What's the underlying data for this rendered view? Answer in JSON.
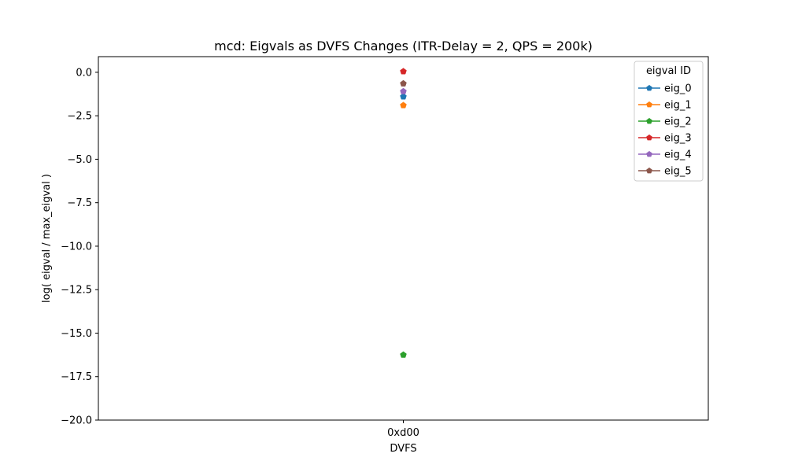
{
  "chart_data": {
    "type": "line",
    "title": "mcd: Eigvals as DVFS Changes (ITR-Delay = 2, QPS = 200k)",
    "xlabel": "DVFS",
    "ylabel": "log( eigval / max_eigval )",
    "categories": [
      "0xd00"
    ],
    "ylim": [
      -20,
      0.9
    ],
    "yticks": [
      0.0,
      -2.5,
      -5.0,
      -7.5,
      -10.0,
      -12.5,
      -15.0,
      -17.5,
      -20.0
    ],
    "ytick_labels": [
      "0.0",
      "−2.5",
      "−5.0",
      "−7.5",
      "−10.0",
      "−12.5",
      "−15.0",
      "−17.5",
      "−20.0"
    ],
    "grid": false,
    "legend": {
      "title": "eigval ID",
      "placement": "upper right"
    },
    "marker": "pentagon",
    "series": [
      {
        "name": "eig_0",
        "color": "#1f77b4",
        "values": [
          -1.4
        ]
      },
      {
        "name": "eig_1",
        "color": "#ff7f0e",
        "values": [
          -1.9
        ]
      },
      {
        "name": "eig_2",
        "color": "#2ca02c",
        "values": [
          -16.25
        ]
      },
      {
        "name": "eig_3",
        "color": "#d62728",
        "values": [
          0.05
        ]
      },
      {
        "name": "eig_4",
        "color": "#9467bd",
        "values": [
          -1.1
        ]
      },
      {
        "name": "eig_5",
        "color": "#8c564b",
        "values": [
          -0.65
        ]
      }
    ]
  }
}
